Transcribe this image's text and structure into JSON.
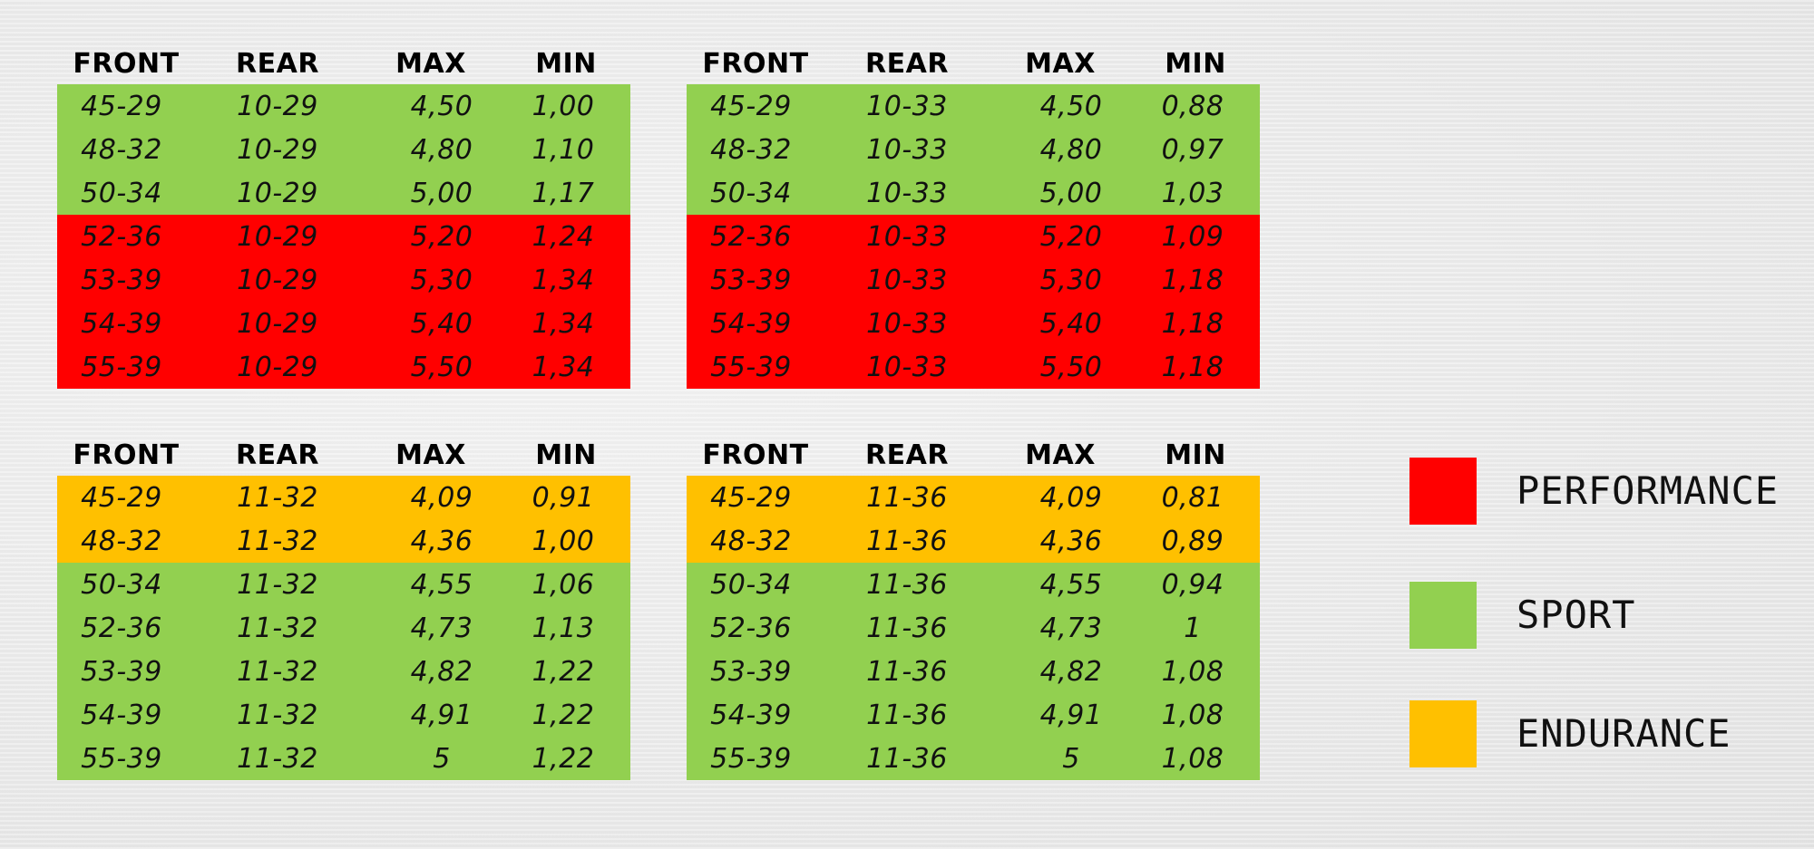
{
  "colors": {
    "performance": "#ff0000",
    "sport": "#92d050",
    "endurance": "#ffc000"
  },
  "chart_data": [
    {
      "type": "table",
      "columns": [
        "FRONT",
        "REAR",
        "MAX",
        "MIN"
      ],
      "rows": [
        {
          "front": "45-29",
          "rear": "10-29",
          "max": "4,50",
          "min": "1,00",
          "category": "sport"
        },
        {
          "front": "48-32",
          "rear": "10-29",
          "max": "4,80",
          "min": "1,10",
          "category": "sport"
        },
        {
          "front": "50-34",
          "rear": "10-29",
          "max": "5,00",
          "min": "1,17",
          "category": "sport"
        },
        {
          "front": "52-36",
          "rear": "10-29",
          "max": "5,20",
          "min": "1,24",
          "category": "performance"
        },
        {
          "front": "53-39",
          "rear": "10-29",
          "max": "5,30",
          "min": "1,34",
          "category": "performance"
        },
        {
          "front": "54-39",
          "rear": "10-29",
          "max": "5,40",
          "min": "1,34",
          "category": "performance"
        },
        {
          "front": "55-39",
          "rear": "10-29",
          "max": "5,50",
          "min": "1,34",
          "category": "performance"
        }
      ]
    },
    {
      "type": "table",
      "columns": [
        "FRONT",
        "REAR",
        "MAX",
        "MIN"
      ],
      "rows": [
        {
          "front": "45-29",
          "rear": "10-33",
          "max": "4,50",
          "min": "0,88",
          "category": "sport"
        },
        {
          "front": "48-32",
          "rear": "10-33",
          "max": "4,80",
          "min": "0,97",
          "category": "sport"
        },
        {
          "front": "50-34",
          "rear": "10-33",
          "max": "5,00",
          "min": "1,03",
          "category": "sport"
        },
        {
          "front": "52-36",
          "rear": "10-33",
          "max": "5,20",
          "min": "1,09",
          "category": "performance"
        },
        {
          "front": "53-39",
          "rear": "10-33",
          "max": "5,30",
          "min": "1,18",
          "category": "performance"
        },
        {
          "front": "54-39",
          "rear": "10-33",
          "max": "5,40",
          "min": "1,18",
          "category": "performance"
        },
        {
          "front": "55-39",
          "rear": "10-33",
          "max": "5,50",
          "min": "1,18",
          "category": "performance"
        }
      ]
    },
    {
      "type": "table",
      "columns": [
        "FRONT",
        "REAR",
        "MAX",
        "MIN"
      ],
      "rows": [
        {
          "front": "45-29",
          "rear": "11-32",
          "max": "4,09",
          "min": "0,91",
          "category": "endurance"
        },
        {
          "front": "48-32",
          "rear": "11-32",
          "max": "4,36",
          "min": "1,00",
          "category": "endurance"
        },
        {
          "front": "50-34",
          "rear": "11-32",
          "max": "4,55",
          "min": "1,06",
          "category": "sport"
        },
        {
          "front": "52-36",
          "rear": "11-32",
          "max": "4,73",
          "min": "1,13",
          "category": "sport"
        },
        {
          "front": "53-39",
          "rear": "11-32",
          "max": "4,82",
          "min": "1,22",
          "category": "sport"
        },
        {
          "front": "54-39",
          "rear": "11-32",
          "max": "4,91",
          "min": "1,22",
          "category": "sport"
        },
        {
          "front": "55-39",
          "rear": "11-32",
          "max": "5",
          "min": "1,22",
          "category": "sport"
        }
      ]
    },
    {
      "type": "table",
      "columns": [
        "FRONT",
        "REAR",
        "MAX",
        "MIN"
      ],
      "rows": [
        {
          "front": "45-29",
          "rear": "11-36",
          "max": "4,09",
          "min": "0,81",
          "category": "endurance"
        },
        {
          "front": "48-32",
          "rear": "11-36",
          "max": "4,36",
          "min": "0,89",
          "category": "endurance"
        },
        {
          "front": "50-34",
          "rear": "11-36",
          "max": "4,55",
          "min": "0,94",
          "category": "sport"
        },
        {
          "front": "52-36",
          "rear": "11-36",
          "max": "4,73",
          "min": "1",
          "category": "sport"
        },
        {
          "front": "53-39",
          "rear": "11-36",
          "max": "4,82",
          "min": "1,08",
          "category": "sport"
        },
        {
          "front": "54-39",
          "rear": "11-36",
          "max": "4,91",
          "min": "1,08",
          "category": "sport"
        },
        {
          "front": "55-39",
          "rear": "11-36",
          "max": "5",
          "min": "1,08",
          "category": "sport"
        }
      ]
    }
  ],
  "legend": {
    "items": [
      {
        "key": "performance",
        "label": "PERFORMANCE"
      },
      {
        "key": "sport",
        "label": "SPORT"
      },
      {
        "key": "endurance",
        "label": "ENDURANCE"
      }
    ]
  }
}
